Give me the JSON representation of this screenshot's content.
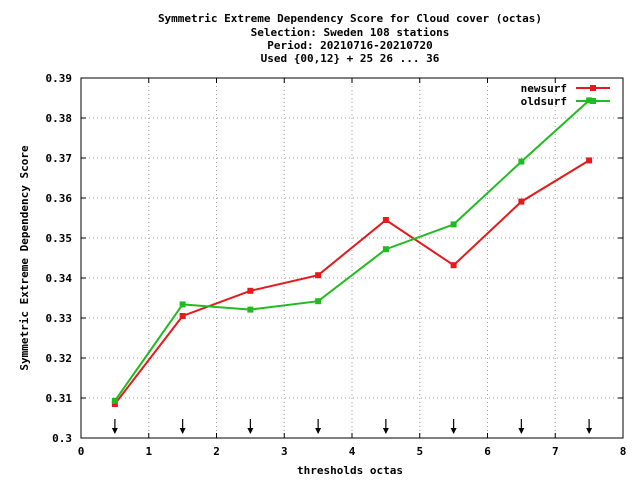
{
  "chart_data": {
    "type": "line",
    "title_lines": [
      "Symmetric Extreme Dependency Score  for Cloud cover (octas)",
      "Selection: Sweden    108 stations",
      "Period: 20210716-20210720",
      "Used {00,12} + 25 26 ... 36"
    ],
    "xlabel": "thresholds octas",
    "ylabel": "Symmetric Extreme Dependency Score",
    "xlim": [
      0,
      8
    ],
    "ylim": [
      0.3,
      0.39
    ],
    "x_ticks": [
      "0",
      "1",
      "2",
      "3",
      "4",
      "5",
      "6",
      "7",
      "8"
    ],
    "y_ticks": [
      "0.3",
      "0.31",
      "0.32",
      "0.33",
      "0.34",
      "0.35",
      "0.36",
      "0.37",
      "0.38",
      "0.39"
    ],
    "grid": true,
    "legend_position": "top-right",
    "x": [
      0.5,
      1.5,
      2.5,
      3.5,
      4.5,
      5.5,
      6.5,
      7.5
    ],
    "series": [
      {
        "name": "newsurf",
        "color": "#e41a1c",
        "values": [
          0.3085,
          0.3305,
          0.3368,
          0.3407,
          0.3545,
          0.3432,
          0.3591,
          0.3694
        ]
      },
      {
        "name": "oldsurf",
        "color": "#1fbc1f",
        "values": [
          0.3093,
          0.3334,
          0.3321,
          0.3342,
          0.3472,
          0.3534,
          0.3691,
          0.3844
        ]
      }
    ],
    "arrow_markers_x": [
      0.5,
      1.5,
      2.5,
      3.5,
      4.5,
      5.5,
      6.5,
      7.5
    ]
  }
}
